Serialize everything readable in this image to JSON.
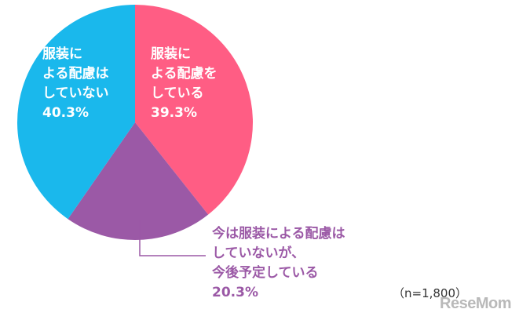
{
  "chart_data": {
    "type": "pie",
    "title": "",
    "slices": [
      {
        "label_lines": [
          "服装に",
          "よる配慮を",
          "している"
        ],
        "value_text": "39.3%",
        "value": 39.3,
        "color": "#ff5d84"
      },
      {
        "label_lines": [
          "今は服装による配慮は",
          "していないが、",
          "今後予定している"
        ],
        "value_text": "20.3%",
        "value": 20.3,
        "color": "#9b59a6"
      },
      {
        "label_lines": [
          "服装に",
          "よる配慮は",
          "していない"
        ],
        "value_text": "40.3%",
        "value": 40.3,
        "color": "#1ab8ec"
      }
    ],
    "sample_size": "（n=1,800）"
  },
  "watermark": "ReseMom"
}
